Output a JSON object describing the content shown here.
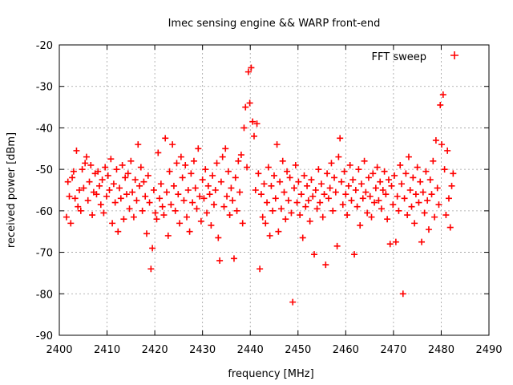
{
  "chart_data": {
    "type": "scatter",
    "title": "Imec sensing engine && WARP front-end",
    "xlabel": "frequency [MHz]",
    "ylabel": "received power [dBm]",
    "xlim": [
      2400,
      2490
    ],
    "ylim": [
      -90,
      -20
    ],
    "xticks": [
      2400,
      2410,
      2420,
      2430,
      2440,
      2450,
      2460,
      2470,
      2480,
      2490
    ],
    "yticks": [
      -90,
      -80,
      -70,
      -60,
      -50,
      -40,
      -30,
      -20
    ],
    "grid": true,
    "legend_position": "top-right",
    "marker_color": "#ff0000",
    "series": [
      {
        "name": "FFT sweep",
        "marker": "+",
        "points": [
          [
            2401.5,
            -61.5
          ],
          [
            2401.8,
            -53.0
          ],
          [
            2402.1,
            -56.5
          ],
          [
            2402.4,
            -63.0
          ],
          [
            2402.7,
            -52.0
          ],
          [
            2403.0,
            -50.5
          ],
          [
            2403.3,
            -57.0
          ],
          [
            2403.6,
            -45.5
          ],
          [
            2403.9,
            -59.0
          ],
          [
            2404.2,
            -55.0
          ],
          [
            2404.5,
            -60.0
          ],
          [
            2404.8,
            -50.0
          ],
          [
            2405.1,
            -54.5
          ],
          [
            2405.4,
            -48.5
          ],
          [
            2405.7,
            -47.0
          ],
          [
            2406.0,
            -57.5
          ],
          [
            2406.3,
            -53.0
          ],
          [
            2406.6,
            -49.0
          ],
          [
            2406.9,
            -61.0
          ],
          [
            2407.2,
            -55.5
          ],
          [
            2407.5,
            -51.0
          ],
          [
            2407.8,
            -56.0
          ],
          [
            2408.1,
            -50.5
          ],
          [
            2408.4,
            -54.0
          ],
          [
            2408.7,
            -58.5
          ],
          [
            2409.0,
            -52.5
          ],
          [
            2409.3,
            -60.5
          ],
          [
            2409.6,
            -49.5
          ],
          [
            2409.9,
            -56.5
          ],
          [
            2410.2,
            -51.5
          ],
          [
            2410.5,
            -55.0
          ],
          [
            2410.8,
            -47.5
          ],
          [
            2411.1,
            -63.0
          ],
          [
            2411.4,
            -53.5
          ],
          [
            2411.7,
            -58.0
          ],
          [
            2412.0,
            -50.0
          ],
          [
            2412.3,
            -65.0
          ],
          [
            2412.6,
            -54.5
          ],
          [
            2412.9,
            -57.0
          ],
          [
            2413.2,
            -49.0
          ],
          [
            2413.5,
            -62.0
          ],
          [
            2413.8,
            -52.0
          ],
          [
            2414.1,
            -56.0
          ],
          [
            2414.4,
            -51.0
          ],
          [
            2414.7,
            -59.5
          ],
          [
            2415.0,
            -48.0
          ],
          [
            2415.3,
            -55.5
          ],
          [
            2415.6,
            -61.5
          ],
          [
            2415.9,
            -52.5
          ],
          [
            2416.2,
            -57.5
          ],
          [
            2416.5,
            -44.0
          ],
          [
            2416.8,
            -54.0
          ],
          [
            2417.1,
            -49.5
          ],
          [
            2417.4,
            -60.0
          ],
          [
            2417.7,
            -53.0
          ],
          [
            2418.0,
            -56.5
          ],
          [
            2418.3,
            -65.5
          ],
          [
            2418.6,
            -51.5
          ],
          [
            2418.9,
            -58.0
          ],
          [
            2419.2,
            -74.0
          ],
          [
            2419.5,
            -69.0
          ],
          [
            2419.8,
            -55.0
          ],
          [
            2420.1,
            -60.5
          ],
          [
            2420.4,
            -62.0
          ],
          [
            2420.7,
            -46.0
          ],
          [
            2421.0,
            -57.0
          ],
          [
            2421.3,
            -53.5
          ],
          [
            2421.6,
            -59.0
          ],
          [
            2421.9,
            -61.0
          ],
          [
            2422.2,
            -42.5
          ],
          [
            2422.5,
            -55.5
          ],
          [
            2422.8,
            -66.0
          ],
          [
            2423.1,
            -50.5
          ],
          [
            2423.4,
            -58.5
          ],
          [
            2423.7,
            -44.0
          ],
          [
            2424.0,
            -54.0
          ],
          [
            2424.3,
            -60.0
          ],
          [
            2424.6,
            -48.5
          ],
          [
            2424.9,
            -56.0
          ],
          [
            2425.2,
            -63.0
          ],
          [
            2425.5,
            -47.0
          ],
          [
            2425.8,
            -52.0
          ],
          [
            2426.1,
            -57.5
          ],
          [
            2426.4,
            -49.0
          ],
          [
            2426.7,
            -61.5
          ],
          [
            2427.0,
            -55.0
          ],
          [
            2427.3,
            -65.0
          ],
          [
            2427.6,
            -51.0
          ],
          [
            2427.9,
            -58.0
          ],
          [
            2428.2,
            -48.0
          ],
          [
            2428.5,
            -54.5
          ],
          [
            2428.8,
            -59.5
          ],
          [
            2429.1,
            -45.0
          ],
          [
            2429.4,
            -56.5
          ],
          [
            2429.7,
            -62.5
          ],
          [
            2430.0,
            -52.5
          ],
          [
            2430.3,
            -57.0
          ],
          [
            2430.6,
            -50.0
          ],
          [
            2430.9,
            -60.5
          ],
          [
            2431.2,
            -54.0
          ],
          [
            2431.5,
            -56.0
          ],
          [
            2431.8,
            -63.5
          ],
          [
            2432.1,
            -51.5
          ],
          [
            2432.4,
            -58.5
          ],
          [
            2432.7,
            -55.0
          ],
          [
            2433.0,
            -48.5
          ],
          [
            2433.3,
            -66.5
          ],
          [
            2433.6,
            -72.0
          ],
          [
            2433.9,
            -53.0
          ],
          [
            2434.2,
            -47.0
          ],
          [
            2434.5,
            -59.0
          ],
          [
            2434.8,
            -45.0
          ],
          [
            2435.1,
            -56.5
          ],
          [
            2435.4,
            -50.5
          ],
          [
            2435.7,
            -61.0
          ],
          [
            2436.0,
            -54.5
          ],
          [
            2436.3,
            -57.5
          ],
          [
            2436.6,
            -71.5
          ],
          [
            2436.9,
            -52.0
          ],
          [
            2437.2,
            -60.0
          ],
          [
            2437.5,
            -48.0
          ],
          [
            2437.8,
            -55.5
          ],
          [
            2438.1,
            -46.5
          ],
          [
            2438.4,
            -63.0
          ],
          [
            2438.7,
            -40.0
          ],
          [
            2439.0,
            -35.0
          ],
          [
            2439.3,
            -49.5
          ],
          [
            2439.6,
            -26.5
          ],
          [
            2439.9,
            -34.0
          ],
          [
            2440.2,
            -25.5
          ],
          [
            2440.5,
            -38.5
          ],
          [
            2440.8,
            -42.0
          ],
          [
            2441.1,
            -55.0
          ],
          [
            2441.4,
            -39.0
          ],
          [
            2441.7,
            -51.0
          ],
          [
            2442.0,
            -74.0
          ],
          [
            2442.3,
            -56.0
          ],
          [
            2442.6,
            -61.5
          ],
          [
            2442.9,
            -53.5
          ],
          [
            2443.2,
            -63.0
          ],
          [
            2443.5,
            -58.0
          ],
          [
            2443.8,
            -49.5
          ],
          [
            2444.1,
            -66.0
          ],
          [
            2444.4,
            -54.0
          ],
          [
            2444.7,
            -60.0
          ],
          [
            2445.0,
            -51.5
          ],
          [
            2445.3,
            -57.0
          ],
          [
            2445.6,
            -44.0
          ],
          [
            2445.9,
            -65.0
          ],
          [
            2446.2,
            -53.0
          ],
          [
            2446.5,
            -59.5
          ],
          [
            2446.8,
            -48.0
          ],
          [
            2447.1,
            -55.5
          ],
          [
            2447.4,
            -62.0
          ],
          [
            2447.7,
            -50.5
          ],
          [
            2448.0,
            -57.5
          ],
          [
            2448.3,
            -52.0
          ],
          [
            2448.6,
            -60.5
          ],
          [
            2448.9,
            -82.0
          ],
          [
            2449.2,
            -54.5
          ],
          [
            2449.5,
            -49.0
          ],
          [
            2449.8,
            -58.0
          ],
          [
            2450.1,
            -53.0
          ],
          [
            2450.4,
            -61.0
          ],
          [
            2450.7,
            -56.0
          ],
          [
            2451.0,
            -66.5
          ],
          [
            2451.3,
            -51.5
          ],
          [
            2451.6,
            -59.0
          ],
          [
            2451.9,
            -54.0
          ],
          [
            2452.2,
            -57.5
          ],
          [
            2452.5,
            -62.5
          ],
          [
            2452.8,
            -52.5
          ],
          [
            2453.1,
            -56.5
          ],
          [
            2453.4,
            -70.5
          ],
          [
            2453.7,
            -55.0
          ],
          [
            2454.0,
            -59.5
          ],
          [
            2454.3,
            -50.0
          ],
          [
            2454.6,
            -58.0
          ],
          [
            2454.9,
            -53.5
          ],
          [
            2455.2,
            -61.5
          ],
          [
            2455.5,
            -56.0
          ],
          [
            2455.8,
            -73.0
          ],
          [
            2456.1,
            -51.0
          ],
          [
            2456.4,
            -57.0
          ],
          [
            2456.7,
            -54.5
          ],
          [
            2457.0,
            -48.5
          ],
          [
            2457.3,
            -60.0
          ],
          [
            2457.6,
            -52.0
          ],
          [
            2457.9,
            -55.5
          ],
          [
            2458.2,
            -68.5
          ],
          [
            2458.5,
            -47.0
          ],
          [
            2458.8,
            -42.5
          ],
          [
            2459.1,
            -53.0
          ],
          [
            2459.4,
            -58.5
          ],
          [
            2459.7,
            -50.5
          ],
          [
            2460.0,
            -56.0
          ],
          [
            2460.3,
            -61.0
          ],
          [
            2460.6,
            -54.0
          ],
          [
            2460.9,
            -49.0
          ],
          [
            2461.2,
            -57.5
          ],
          [
            2461.5,
            -52.5
          ],
          [
            2461.8,
            -70.5
          ],
          [
            2462.1,
            -55.0
          ],
          [
            2462.4,
            -59.0
          ],
          [
            2462.7,
            -50.0
          ],
          [
            2463.0,
            -63.5
          ],
          [
            2463.3,
            -53.5
          ],
          [
            2463.6,
            -57.0
          ],
          [
            2463.9,
            -48.0
          ],
          [
            2464.2,
            -55.5
          ],
          [
            2464.5,
            -60.5
          ],
          [
            2464.8,
            -52.0
          ],
          [
            2465.1,
            -56.5
          ],
          [
            2465.4,
            -61.5
          ],
          [
            2465.7,
            -51.0
          ],
          [
            2466.0,
            -58.0
          ],
          [
            2466.3,
            -54.5
          ],
          [
            2466.6,
            -49.5
          ],
          [
            2466.9,
            -57.5
          ],
          [
            2467.2,
            -53.0
          ],
          [
            2467.5,
            -59.5
          ],
          [
            2467.8,
            -55.0
          ],
          [
            2468.1,
            -50.5
          ],
          [
            2468.4,
            -56.0
          ],
          [
            2468.7,
            -62.0
          ],
          [
            2469.0,
            -52.5
          ],
          [
            2469.3,
            -68.0
          ],
          [
            2469.6,
            -54.0
          ],
          [
            2469.9,
            -58.5
          ],
          [
            2470.2,
            -51.5
          ],
          [
            2470.5,
            -67.5
          ],
          [
            2470.8,
            -56.5
          ],
          [
            2471.1,
            -60.0
          ],
          [
            2471.4,
            -49.0
          ],
          [
            2471.7,
            -53.5
          ],
          [
            2472.0,
            -80.0
          ],
          [
            2472.3,
            -57.0
          ],
          [
            2472.6,
            -51.0
          ],
          [
            2472.9,
            -61.0
          ],
          [
            2473.2,
            -47.0
          ],
          [
            2473.5,
            -55.0
          ],
          [
            2473.8,
            -59.0
          ],
          [
            2474.1,
            -52.0
          ],
          [
            2474.4,
            -63.0
          ],
          [
            2474.7,
            -56.0
          ],
          [
            2475.0,
            -49.5
          ],
          [
            2475.3,
            -58.0
          ],
          [
            2475.6,
            -53.0
          ],
          [
            2475.9,
            -67.5
          ],
          [
            2476.2,
            -55.5
          ],
          [
            2476.5,
            -60.5
          ],
          [
            2476.8,
            -50.5
          ],
          [
            2477.1,
            -57.5
          ],
          [
            2477.4,
            -64.5
          ],
          [
            2477.7,
            -52.5
          ],
          [
            2478.0,
            -56.0
          ],
          [
            2478.3,
            -48.0
          ],
          [
            2478.6,
            -61.5
          ],
          [
            2478.9,
            -43.0
          ],
          [
            2479.2,
            -54.5
          ],
          [
            2479.5,
            -58.5
          ],
          [
            2479.8,
            -34.5
          ],
          [
            2480.1,
            -44.0
          ],
          [
            2480.4,
            -32.0
          ],
          [
            2480.7,
            -50.0
          ],
          [
            2481.0,
            -61.0
          ],
          [
            2481.3,
            -45.5
          ],
          [
            2481.6,
            -57.0
          ],
          [
            2481.9,
            -64.0
          ],
          [
            2482.2,
            -54.0
          ],
          [
            2482.5,
            -51.0
          ]
        ]
      }
    ]
  }
}
